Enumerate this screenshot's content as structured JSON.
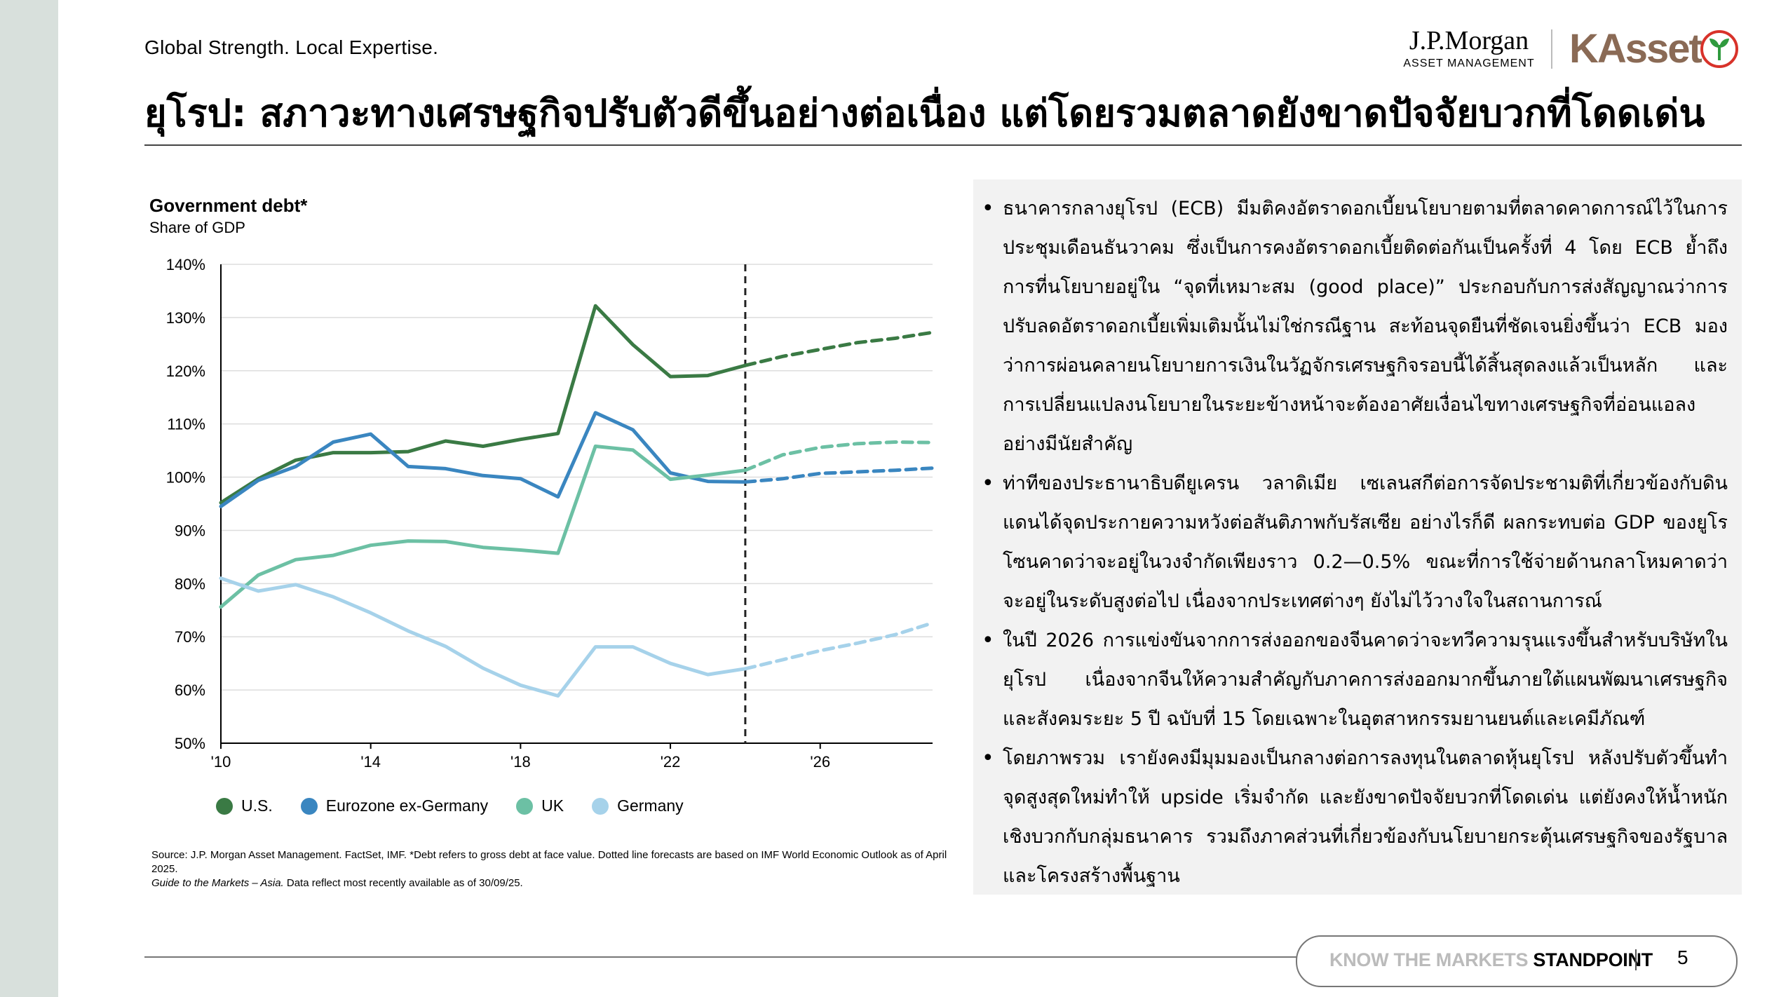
{
  "header": {
    "tagline": "Global Strength.  Local Expertise.",
    "jpm_name": "J.P.Morgan",
    "jpm_sub": "ASSET MANAGEMENT",
    "kasset": "KAsset",
    "title": "ยุโรป: สภาวะทางเศรษฐกิจปรับตัวดีขึ้นอย่างต่อเนื่อง แต่โดยรวมตลาดยังขาดปัจจัยบวกที่โดดเด่น"
  },
  "colors": {
    "us": "#3a7a44",
    "eurozone": "#3a86c0",
    "uk": "#6cc0a4",
    "germany": "#a6d2ea",
    "kasset_brown": "#8a6a55",
    "kasset_green": "#2f9a3e",
    "kasset_red": "#d8322a"
  },
  "chart_data": {
    "type": "line",
    "title": "Government debt*",
    "subtitle": "Share of GDP",
    "x": [
      2010,
      2011,
      2012,
      2013,
      2014,
      2015,
      2016,
      2017,
      2018,
      2019,
      2020,
      2021,
      2022,
      2023,
      2024,
      2025,
      2026,
      2027,
      2028,
      2029
    ],
    "forecast_from": 2024,
    "x_ticks": [
      2010,
      2014,
      2018,
      2022,
      2026
    ],
    "x_tick_labels": [
      "'10",
      "'14",
      "'18",
      "'22",
      "'26"
    ],
    "y_ticks": [
      50,
      60,
      70,
      80,
      90,
      100,
      110,
      120,
      130,
      140
    ],
    "y_tick_labels": [
      "50%",
      "60%",
      "70%",
      "80%",
      "90%",
      "100%",
      "110%",
      "120%",
      "130%",
      "140%"
    ],
    "ylim": [
      50,
      140
    ],
    "xlim": [
      2010,
      2029
    ],
    "grid": true,
    "legend_position": "bottom",
    "series": [
      {
        "name": "U.S.",
        "key": "us",
        "values": [
          95.2,
          99.7,
          103.2,
          104.6,
          104.6,
          104.8,
          106.8,
          105.8,
          107.1,
          108.2,
          132.2,
          124.9,
          118.9,
          119.1,
          121.0,
          122.7,
          124.0,
          125.3,
          126.1,
          127.2
        ]
      },
      {
        "name": "Eurozone ex-Germany",
        "key": "eurozone",
        "values": [
          94.5,
          99.4,
          102.0,
          106.6,
          108.1,
          102.0,
          101.6,
          100.3,
          99.7,
          96.3,
          112.1,
          108.9,
          100.8,
          99.2,
          99.1,
          99.7,
          100.7,
          101.0,
          101.3,
          101.7
        ]
      },
      {
        "name": "UK",
        "key": "uk",
        "values": [
          75.6,
          81.6,
          84.5,
          85.3,
          87.2,
          88.0,
          87.9,
          86.8,
          86.3,
          85.7,
          105.8,
          105.1,
          99.6,
          100.4,
          101.3,
          104.2,
          105.6,
          106.3,
          106.6,
          106.5
        ]
      },
      {
        "name": "Germany",
        "key": "germany",
        "values": [
          81.0,
          78.6,
          79.8,
          77.5,
          74.5,
          71.1,
          68.2,
          64.1,
          60.9,
          58.9,
          68.1,
          68.1,
          65.0,
          62.9,
          64.0,
          65.7,
          67.4,
          68.8,
          70.4,
          72.6
        ]
      }
    ]
  },
  "source": {
    "line1": "Source: J.P. Morgan Asset Management. FactSet, IMF. *Debt refers to gross debt at face value. Dotted line forecasts are based on IMF World Economic Outlook as of April 2025.",
    "gtm": "Guide to the Markets – Asia.",
    "line2": " Data reflect most recently available as of 30/09/25."
  },
  "bullets": [
    "ธนาคารกลางยุโรป (ECB) มีมติคงอัตราดอกเบี้ยนโยบายตามที่ตลาดคาดการณ์ไว้ในการประชุมเดือนธันวาคม ซึ่งเป็นการคงอัตราดอกเบี้ยติดต่อกันเป็นครั้งที่ 4 โดย ECB ย้ำถึงการที่นโยบายอยู่ใน “จุดที่เหมาะสม (good place)” ประกอบกับการส่งสัญญาณว่าการปรับลดอัตราดอกเบี้ยเพิ่มเติมนั้นไม่ใช่กรณีฐาน สะท้อนจุดยืนที่ชัดเจนยิ่งขึ้นว่า ECB มองว่าการผ่อนคลายนโยบายการเงินในวัฏจักรเศรษฐกิจรอบนี้ได้สิ้นสุดลงแล้วเป็นหลัก และการเปลี่ยนแปลงนโยบายในระยะข้างหน้าจะต้องอาศัยเงื่อนไขทางเศรษฐกิจที่อ่อนแอลงอย่างมีนัยสำคัญ",
    "ท่าทีของประธานาธิบดียูเครน วลาดิเมีย เซเลนสกีต่อการจัดประชามติที่เกี่ยวข้องกับดินแดนได้จุดประกายความหวังต่อสันติภาพกับรัสเซีย อย่างไรก็ดี ผลกระทบต่อ GDP ของยูโรโซนคาดว่าจะอยู่ในวงจำกัดเพียงราว 0.2—0.5% ขณะที่การใช้จ่ายด้านกลาโหมคาดว่าจะอยู่ในระดับสูงต่อไป เนื่องจากประเทศต่างๆ ยังไม่ไว้วางใจในสถานการณ์",
    "ในปี 2026 การแข่งขันจากการส่งออกของจีนคาดว่าจะทวีความรุนแรงขึ้นสำหรับบริษัทในยุโรป เนื่องจากจีนให้ความสำคัญกับภาคการส่งออกมากขึ้นภายใต้แผนพัฒนาเศรษฐกิจและสังคมระยะ 5 ปี ฉบับที่ 15 โดยเฉพาะในอุตสาหกรรมยานยนต์และเคมีภัณฑ์",
    "โดยภาพรวม เรายังคงมีมุมมองเป็นกลางต่อการลงทุนในตลาดหุ้นยุโรป หลังปรับตัวขึ้นทำจุดสูงสุดใหม่ทำให้ upside เริ่มจำกัด และยังขาดปัจจัยบวกที่โดดเด่น แต่ยังคงให้น้ำหนักเชิงบวกกับกลุ่มธนาคาร รวมถึงภาคส่วนที่เกี่ยวข้องกับนโยบายกระตุ้นเศรษฐกิจของรัฐบาล และโครงสร้างพื้นฐาน"
  ],
  "footer": {
    "know": "KNOW THE MARKETS",
    "standpoint": " STANDPOINT",
    "page": "5"
  }
}
